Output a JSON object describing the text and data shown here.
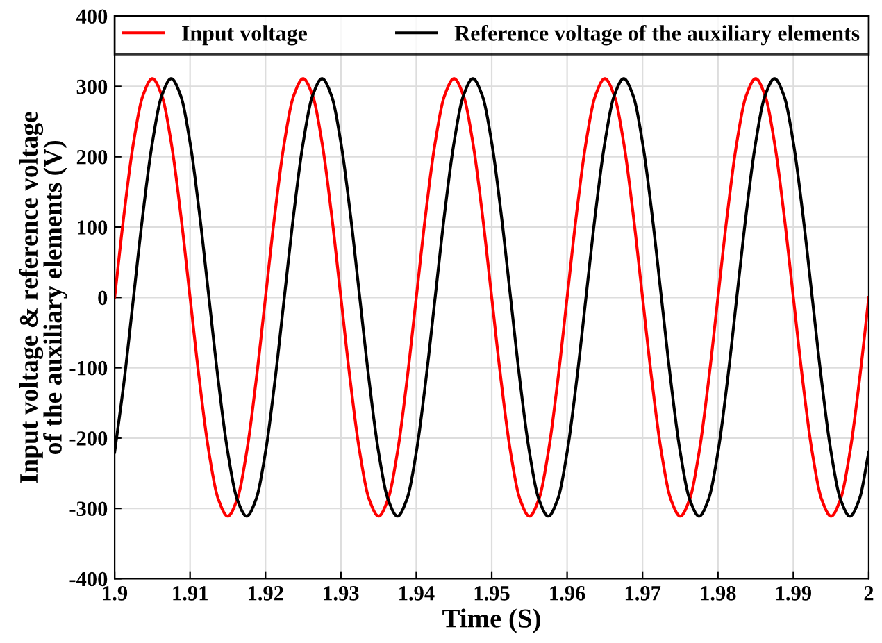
{
  "chart_data": {
    "type": "line",
    "xlabel": "Time (S)",
    "ylabel": "Input voltage & reference voltage\nof the auxiliary elements (V)",
    "x": [
      1.9,
      1.90125,
      1.9025,
      1.90375,
      1.905,
      1.90625,
      1.9075,
      1.90875,
      1.91,
      1.91125,
      1.9125,
      1.91375,
      1.915,
      1.91625,
      1.9175,
      1.91875,
      1.92,
      1.92125,
      1.9225,
      1.92375,
      1.925,
      1.92625,
      1.9275,
      1.92875,
      1.93,
      1.93125,
      1.9325,
      1.93375,
      1.935,
      1.93625,
      1.9375,
      1.93875,
      1.94,
      1.94125,
      1.9425,
      1.94375,
      1.945,
      1.94625,
      1.9475,
      1.94875,
      1.95,
      1.95125,
      1.9525,
      1.95375,
      1.955,
      1.95625,
      1.9575,
      1.95875,
      1.96,
      1.96125,
      1.9625,
      1.96375,
      1.965,
      1.96625,
      1.9675,
      1.96875,
      1.97,
      1.97125,
      1.9725,
      1.97375,
      1.975,
      1.97625,
      1.9775,
      1.97875,
      1.98,
      1.98125,
      1.9825,
      1.98375,
      1.985,
      1.98625,
      1.9875,
      1.98875,
      1.99,
      1.99125,
      1.9925,
      1.99375,
      1.995,
      1.99625,
      1.9975,
      1.99875,
      2.0
    ],
    "series": [
      {
        "name": "Input voltage",
        "color": "#ff0000",
        "values": [
          0,
          119,
          220,
          287,
          311,
          287,
          220,
          119,
          0,
          -119,
          -220,
          -287,
          -311,
          -287,
          -220,
          -119,
          0,
          119,
          220,
          287,
          311,
          287,
          220,
          119,
          0,
          -119,
          -220,
          -287,
          -311,
          -287,
          -220,
          -119,
          0,
          119,
          220,
          287,
          311,
          287,
          220,
          119,
          0,
          -119,
          -220,
          -287,
          -311,
          -287,
          -220,
          -119,
          0,
          119,
          220,
          287,
          311,
          287,
          220,
          119,
          0,
          -119,
          -220,
          -287,
          -311,
          -287,
          -220,
          -119,
          0,
          119,
          220,
          287,
          311,
          287,
          220,
          119,
          0,
          -119,
          -220,
          -287,
          -311,
          -287,
          -220,
          -119,
          0
        ]
      },
      {
        "name": "Reference voltage of the auxiliary elements",
        "color": "#000000",
        "values": [
          -220,
          -119,
          0,
          119,
          220,
          287,
          311,
          287,
          220,
          119,
          0,
          -119,
          -220,
          -287,
          -311,
          -287,
          -220,
          -119,
          0,
          119,
          220,
          287,
          311,
          287,
          220,
          119,
          0,
          -119,
          -220,
          -287,
          -311,
          -287,
          -220,
          -119,
          0,
          119,
          220,
          287,
          311,
          287,
          220,
          119,
          0,
          -119,
          -220,
          -287,
          -311,
          -287,
          -220,
          -119,
          0,
          119,
          220,
          287,
          311,
          287,
          220,
          119,
          0,
          -119,
          -220,
          -287,
          -311,
          -287,
          -220,
          -119,
          0,
          119,
          220,
          287,
          311,
          287,
          220,
          119,
          0,
          -119,
          -220,
          -287,
          -311,
          -287,
          -220
        ]
      }
    ],
    "xlim": [
      1.9,
      2.0
    ],
    "xticks": [
      {
        "value": 1.9,
        "label": "1.9"
      },
      1.91,
      1.92,
      1.93,
      1.94,
      1.95,
      1.96,
      1.97,
      1.98,
      1.99,
      {
        "value": 2.0,
        "label": "2"
      }
    ],
    "ylim": [
      -400,
      400
    ],
    "yticks": [
      -400,
      -300,
      -200,
      -100,
      0,
      100,
      200,
      300,
      400
    ],
    "grid": true,
    "legend": "top",
    "marker": "none",
    "line_style": "solid"
  }
}
